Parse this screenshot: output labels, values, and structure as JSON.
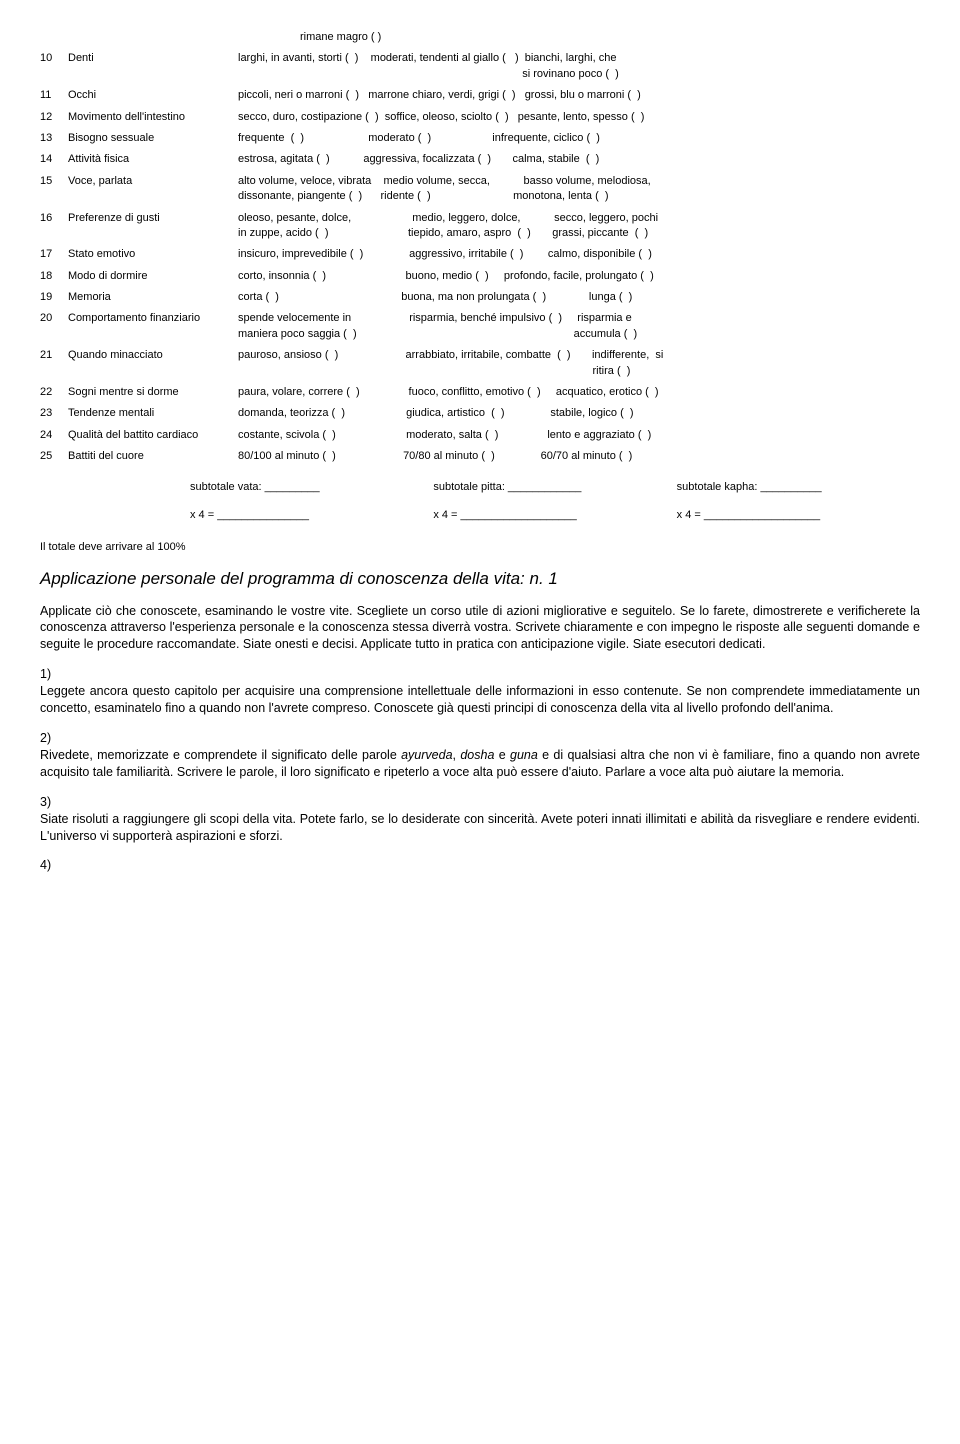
{
  "pre": "rimane magro (  )",
  "rows": [
    {
      "n": "10",
      "label": "Denti",
      "opts": "larghi, in avanti, storti (  )    moderati, tendenti al giallo (   )  bianchi, larghi, che\n                                                                                             si rovinano poco (  )"
    },
    {
      "n": "11",
      "label": "Occhi",
      "opts": "piccoli, neri o marroni (  )   marrone chiaro, verdi, grigi (  )   grossi, blu o marroni (  )"
    },
    {
      "n": "12",
      "label": "Movimento dell'intestino",
      "opts": "secco, duro, costipazione (  )  soffice, oleoso, sciolto (  )   pesante, lento, spesso (  )"
    },
    {
      "n": "13",
      "label": "Bisogno sessuale",
      "opts": "frequente  (  )                     moderato (  )                    infrequente, ciclico (  )"
    },
    {
      "n": "14",
      "label": "Attività fisica",
      "opts": "estrosa, agitata (  )           aggressiva, focalizzata (  )       calma, stabile  (  )"
    },
    {
      "n": "15",
      "label": "Voce, parlata",
      "opts": "alto volume, veloce, vibrata    medio volume, secca,           basso volume, melodiosa,\ndissonante, piangente (  )      ridente (  )                           monotona, lenta (  )"
    },
    {
      "n": "16",
      "label": "Preferenze di gusti",
      "opts": "oleoso, pesante, dolce,                    medio, leggero, dolce,           secco, leggero, pochi\nin zuppe, acido (  )                          tiepido, amaro, aspro  (  )       grassi, piccante  (  )"
    },
    {
      "n": "17",
      "label": "Stato emotivo",
      "opts": "insicuro, imprevedibile (  )               aggressivo, irritabile (  )        calmo, disponibile (  )"
    },
    {
      "n": "18",
      "label": "Modo di dormire",
      "opts": "corto, insonnia (  )                          buono, medio (  )     profondo, facile, prolungato (  )"
    },
    {
      "n": "19",
      "label": "Memoria",
      "opts": "corta (  )                                        buona, ma non prolungata (  )              lunga (  )"
    },
    {
      "n": "20",
      "label": "Comportamento finanziario",
      "opts": "spende velocemente in                   risparmia, benché impulsivo (  )     risparmia e\nmaniera poco saggia (  )                                                                       accumula (  )"
    },
    {
      "n": "21",
      "label": "Quando minacciato",
      "opts": "pauroso, ansioso (  )                      arrabbiato, irritabile, combatte  (  )       indifferente,  si\n                                                                                                                    ritira (  )"
    },
    {
      "n": "22",
      "label": "Sogni mentre si dorme",
      "opts": "paura, volare, correre (  )                fuoco, conflitto, emotivo (  )     acquatico, erotico (  )"
    },
    {
      "n": "23",
      "label": "Tendenze mentali",
      "opts": "domanda, teorizza (  )                    giudica, artistico  (  )               stabile, logico (  )"
    },
    {
      "n": "24",
      "label": "Qualità del battito cardiaco",
      "opts": "costante, scivola (  )                       moderato, salta (  )                lento e aggraziato (  )"
    },
    {
      "n": "25",
      "label": "Battiti del cuore",
      "opts": "80/100 al minuto (  )                      70/80 al minuto (  )               60/70 al minuto (  )"
    }
  ],
  "subtotal": {
    "vata": "subtotale vata: _________",
    "pitta": "subtotale pitta: ____________",
    "kapha": "subtotale kapha: __________"
  },
  "mult": {
    "a": "x 4 = _______________",
    "b": "x 4 = ___________________",
    "c": "x 4 = ___________________"
  },
  "total_note": "Il totale deve arrivare al 100%",
  "section_title": "Applicazione personale del programma di conoscenza della vita: n. 1",
  "intro": "Applicate ciò che conoscete, esaminando le vostre vite. Scegliete un corso utile di azioni migliorative e seguitelo. Se lo farete, dimostrerete e verificherete la conoscenza attraverso l'esperienza personale e la conoscenza stessa diverrà vostra. Scrivete chiaramente e con impegno le risposte alle seguenti domande e seguite le procedure raccomandate. Siate onesti e decisi. Applicate tutto in pratica con anticipazione vigile. Siate esecutori dedicati.",
  "q1_n": "1)",
  "q1": "Leggete ancora questo capitolo per acquisire una comprensione intellettuale delle informazioni in esso contenute. Se non comprendete immediatamente un concetto, esaminatelo fino a quando non l'avrete compreso.  Conoscete già questi principi di conoscenza della vita al livello profondo dell'anima.",
  "q2_n": "2)",
  "q2_a": "Rivedete, memorizzate e comprendete il significato delle parole ",
  "q2_i1": "ayurveda",
  "q2_b": ", ",
  "q2_i2": "dosha",
  "q2_c": " e ",
  "q2_i3": "guna",
  "q2_d": " e di qualsiasi altra che non vi è familiare, fino a quando non avrete acquisito tale familiarità. Scrivere le parole, il loro significato e ripeterlo a voce alta può essere d'aiuto. Parlare a voce alta può aiutare la memoria.",
  "q3_n": "3)",
  "q3": "Siate risoluti a raggiungere gli scopi della vita. Potete farlo, se lo desiderate con sincerità. Avete poteri innati illimitati e abilità da risvegliare e rendere evidenti. L'universo vi supporterà aspirazioni e sforzi.",
  "q4_n": "4)"
}
